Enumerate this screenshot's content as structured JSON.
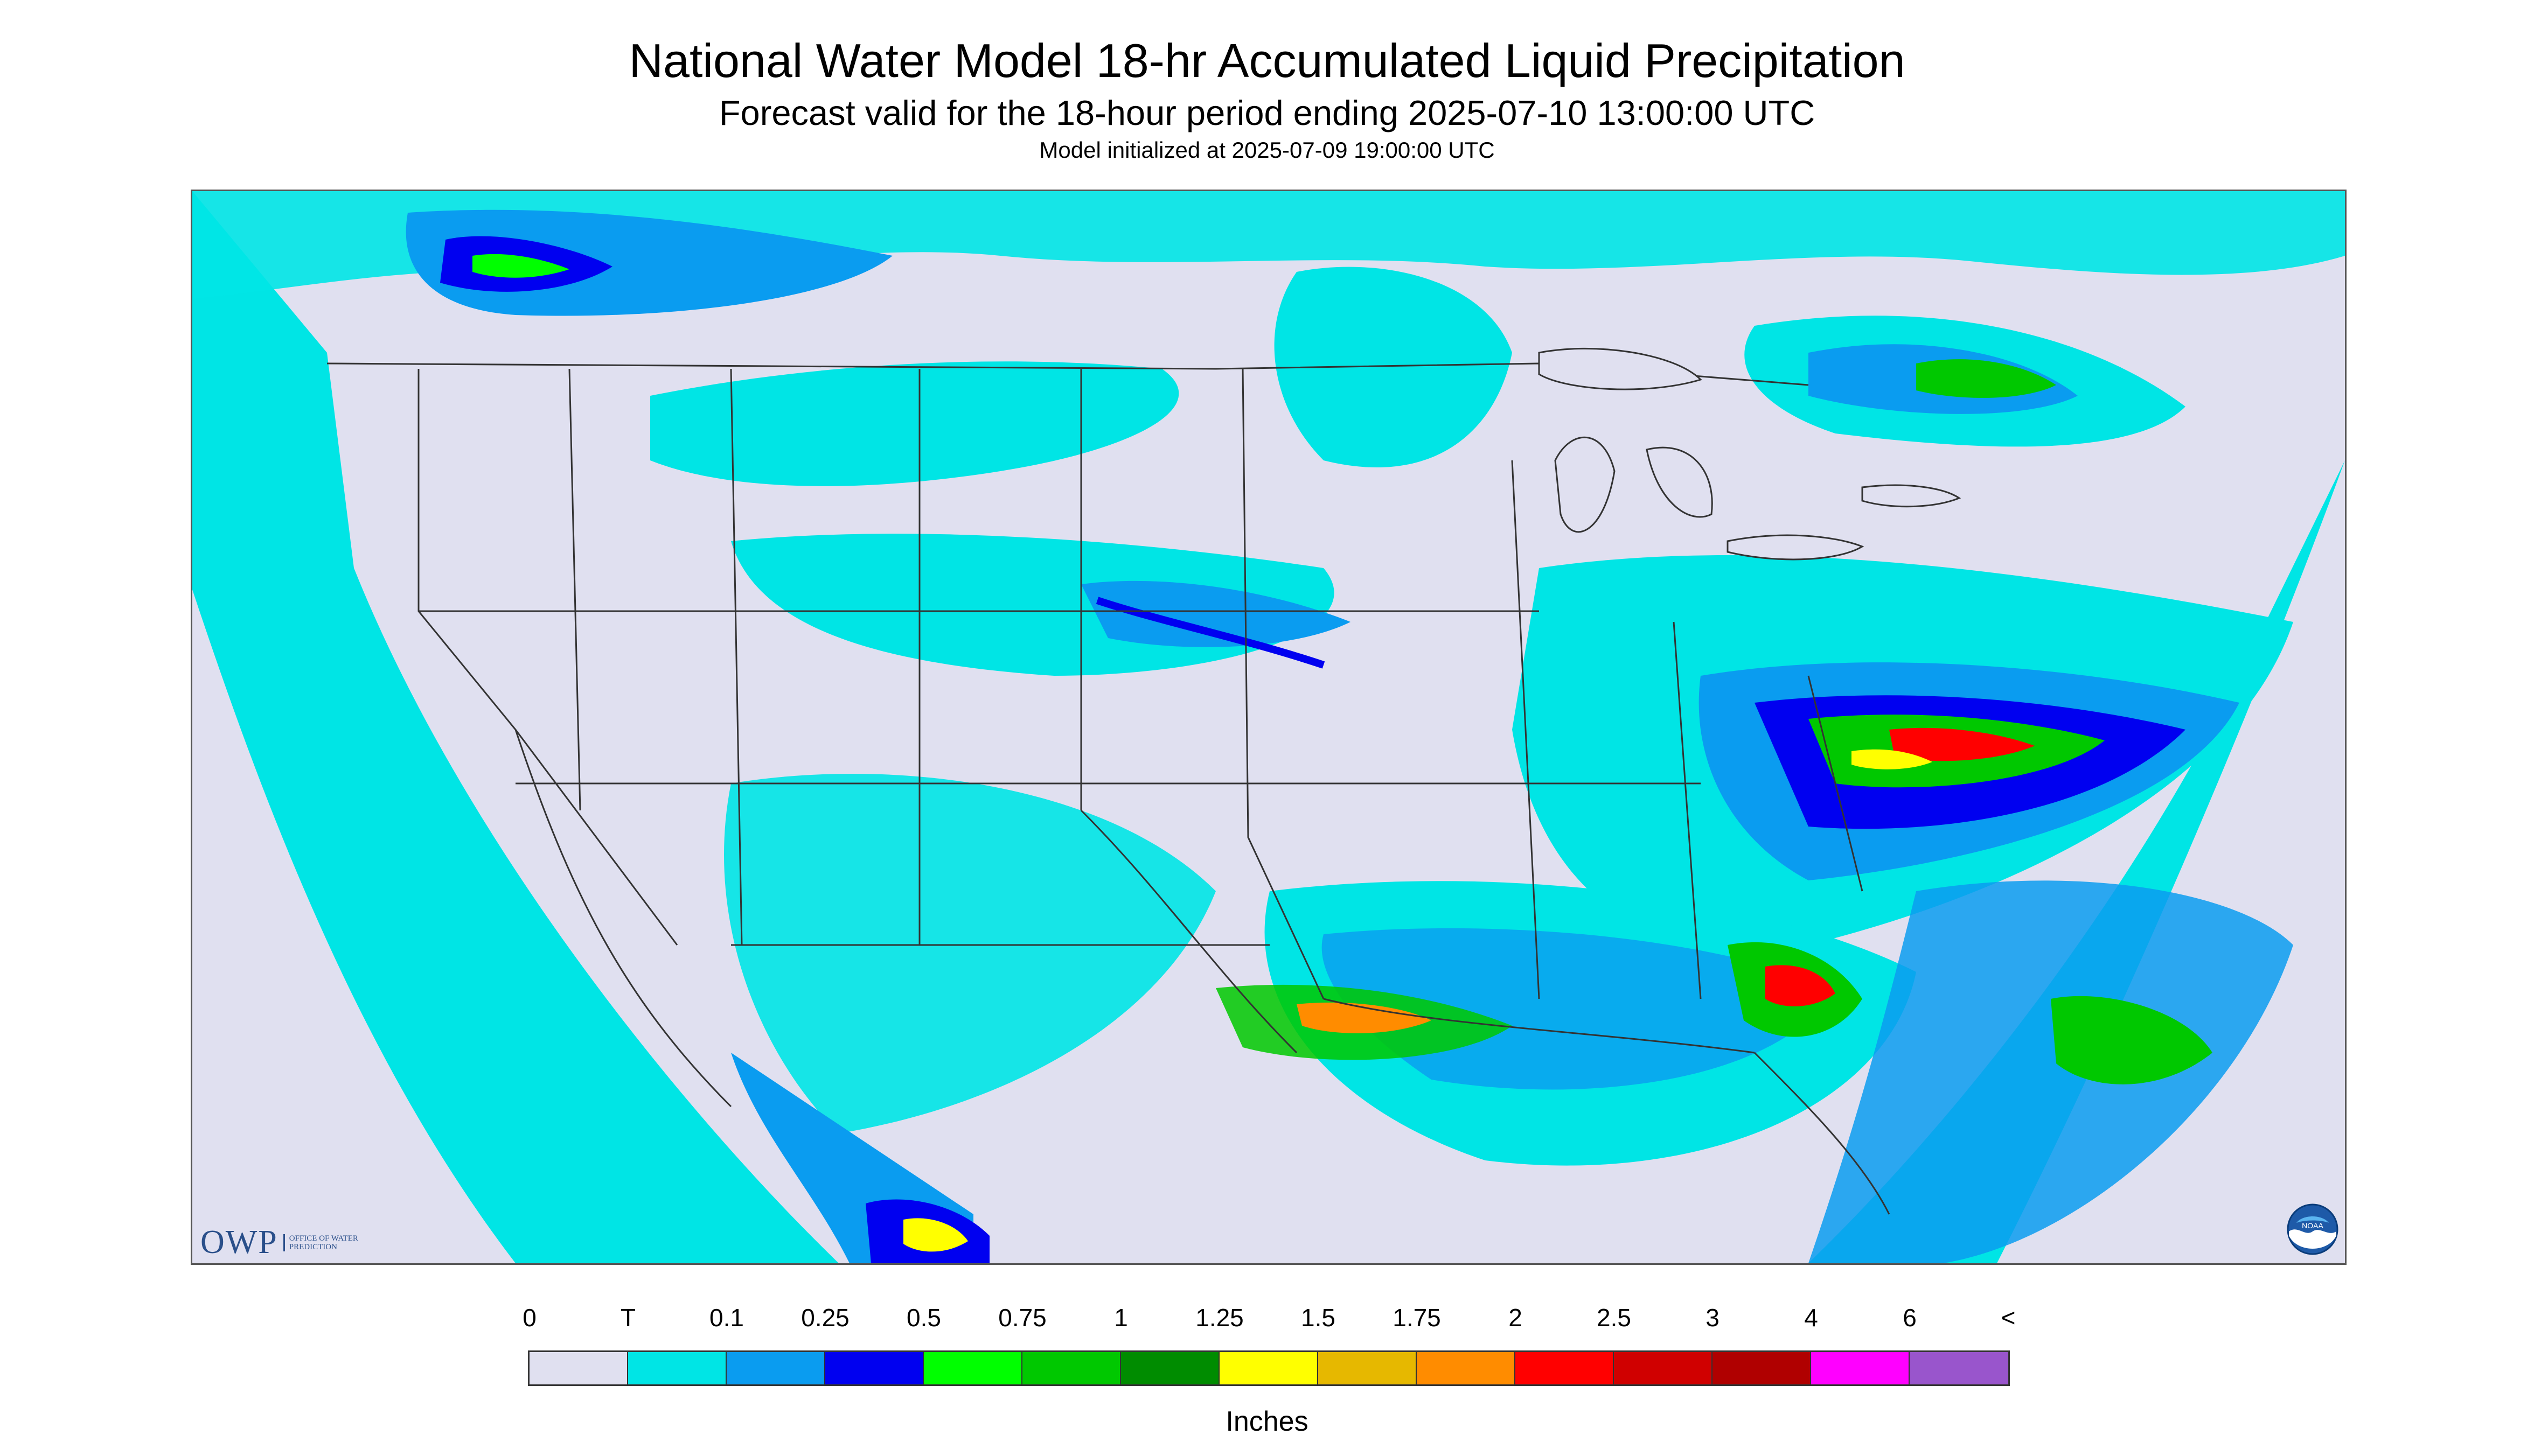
{
  "title": "National Water Model 18-hr Accumulated Liquid Precipitation",
  "subtitle": "Forecast valid for the 18-hour period ending 2025-07-10 13:00:00 UTC",
  "initialized": "Model initialized at 2025-07-09 19:00:00 UTC",
  "legend": {
    "units": "Inches",
    "labels": [
      "0",
      "T",
      "0.1",
      "0.25",
      "0.5",
      "0.75",
      "1",
      "1.25",
      "1.5",
      "1.75",
      "2",
      "2.5",
      "3",
      "4",
      "6",
      "<"
    ],
    "colors": [
      "#e0e0f0",
      "#00e5e5",
      "#0a9cf0",
      "#0000f0",
      "#00ff00",
      "#00c800",
      "#008c00",
      "#ffff00",
      "#e6b800",
      "#ff8c00",
      "#ff0000",
      "#d00000",
      "#b00000",
      "#ff00ff",
      "#9955cc"
    ]
  },
  "logos": {
    "owp": "OWP",
    "owp_sub": "OFFICE OF WATER PREDICTION",
    "noaa": "NOAA"
  },
  "map": {
    "background_color": "#e0e0f0",
    "trace_color": "#00e5e5",
    "light_color": "#0a9cf0",
    "moderate_color": "#0000f0",
    "heavy_colors": [
      "#00ff00",
      "#00c800",
      "#008c00",
      "#ffff00",
      "#ff8c00",
      "#ff0000",
      "#b00000"
    ],
    "boundary_color": "#333333"
  }
}
